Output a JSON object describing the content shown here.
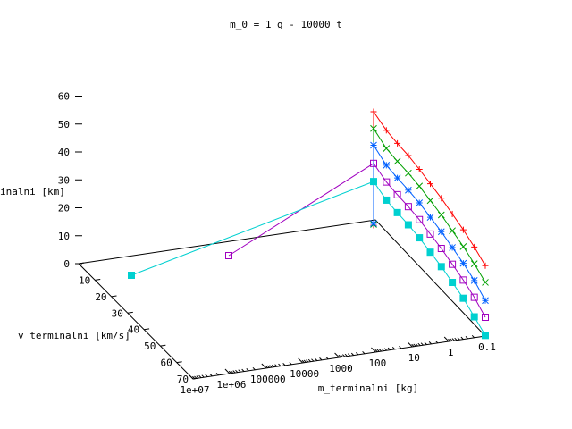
{
  "chart_data": {
    "type": "scatter",
    "dimensionality": "3d",
    "title": "m_0 = 1 g - 10000 t",
    "xlabel": "m_terminalni [kg]",
    "ylabel": "v_terminalni [km/s]",
    "zlabel": "h_terminalni [km]",
    "zlabel_visible": "inalni [km]",
    "x_scale": "log",
    "x_ticks": [
      "1e+07",
      "1e+06",
      "100000",
      "10000",
      "1000",
      "100",
      "10",
      "1",
      "0.1"
    ],
    "y_ticks": [
      "0",
      "10",
      "20",
      "30",
      "40",
      "50",
      "60",
      "70"
    ],
    "z_ticks": [
      "0",
      "10",
      "20",
      "30",
      "40",
      "50",
      "60"
    ],
    "zlim": [
      0,
      60
    ],
    "grid": false,
    "legend": "none",
    "series": [
      {
        "color": "#ff0000",
        "marker": "plus",
        "values": [
          40,
          37.5,
          37,
          36.8,
          36,
          35,
          34,
          32.5,
          31,
          29,
          26.5
        ]
      },
      {
        "color": "#00a000",
        "marker": "x",
        "values": [
          34,
          31,
          30.6,
          30.5,
          30,
          29,
          28,
          26.5,
          25,
          23,
          20.5
        ]
      },
      {
        "color": "#0060ff",
        "marker": "asterisk",
        "values": [
          28,
          25,
          24.6,
          24.4,
          24,
          23,
          22,
          20.5,
          19,
          17,
          14
        ]
      },
      {
        "color": "#a000c0",
        "marker": "open-square",
        "values": [
          21.5,
          19,
          18.6,
          18.5,
          18,
          17,
          16,
          14.5,
          13,
          11,
          8
        ]
      },
      {
        "color": "#00d0d0",
        "marker": "filled-square",
        "values": [
          15,
          12.5,
          12.2,
          12,
          11.5,
          10.5,
          9.5,
          8,
          6.5,
          4,
          1.5
        ]
      }
    ]
  }
}
